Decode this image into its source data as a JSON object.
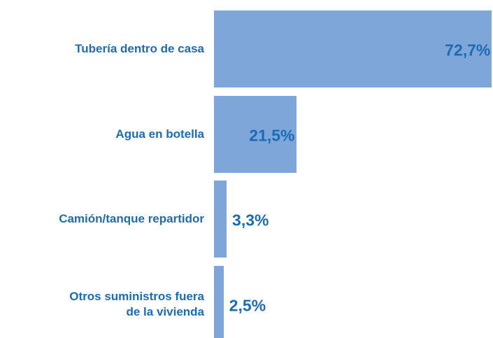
{
  "chart_data": {
    "type": "bar",
    "orientation": "horizontal",
    "categories": [
      "Tubería dentro de casa",
      "Agua en botella",
      "Camión/tanque repartidor",
      "Otros suministros fuera\nde la vivienda"
    ],
    "values": [
      72.7,
      21.5,
      3.3,
      2.5
    ],
    "value_labels": [
      "72,7%",
      "21,5%",
      "3,3%",
      "2,5%"
    ],
    "color": "#7fa6d9",
    "label_color": "#1a6db5",
    "xlim": [
      0,
      73
    ]
  }
}
